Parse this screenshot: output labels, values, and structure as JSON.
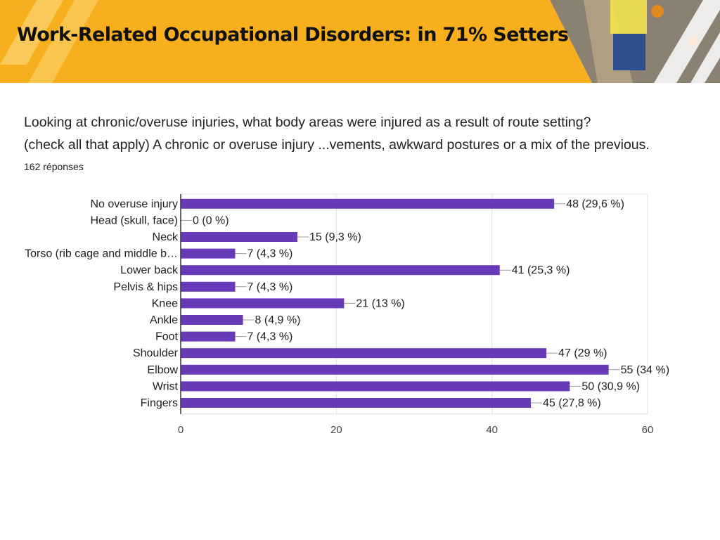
{
  "slide": {
    "title": "Work-Related Occupational Disorders: in 71% Setters"
  },
  "form": {
    "question_line1": "Looking at chronic/overuse injuries, what body areas were injured as a result of route setting?",
    "question_line2": "(check all that apply) A chronic or overuse injury ...vements, awkward postures or a mix of the previous.",
    "responses": "162 réponses"
  },
  "colors": {
    "banner": "#F7AF1D",
    "bar": "#673AB7",
    "grid": "#E0E0E0",
    "text": "#202124"
  },
  "chart_data": {
    "type": "bar",
    "orientation": "horizontal",
    "title": "",
    "xlabel": "",
    "ylabel": "",
    "xlim": [
      0,
      60
    ],
    "xticks": [
      0,
      20,
      40,
      60
    ],
    "grid": true,
    "categories": [
      "No overuse injury",
      "Head (skull, face)",
      "Neck",
      "Torso (rib cage and middle b…",
      "Lower back",
      "Pelvis & hips",
      "Knee",
      "Ankle",
      "Foot",
      "Shoulder",
      "Elbow",
      "Wrist",
      "Fingers"
    ],
    "values": [
      48,
      0,
      15,
      7,
      41,
      7,
      21,
      8,
      7,
      47,
      55,
      50,
      45
    ],
    "data_labels": [
      "48 (29,6 %)",
      "0 (0 %)",
      "15 (9,3 %)",
      "7 (4,3 %)",
      "41 (25,3 %)",
      "7 (4,3 %)",
      "21 (13 %)",
      "8 (4,9 %)",
      "7 (4,3 %)",
      "47 (29 %)",
      "55 (34 %)",
      "50 (30,9 %)",
      "45 (27,8 %)"
    ]
  }
}
